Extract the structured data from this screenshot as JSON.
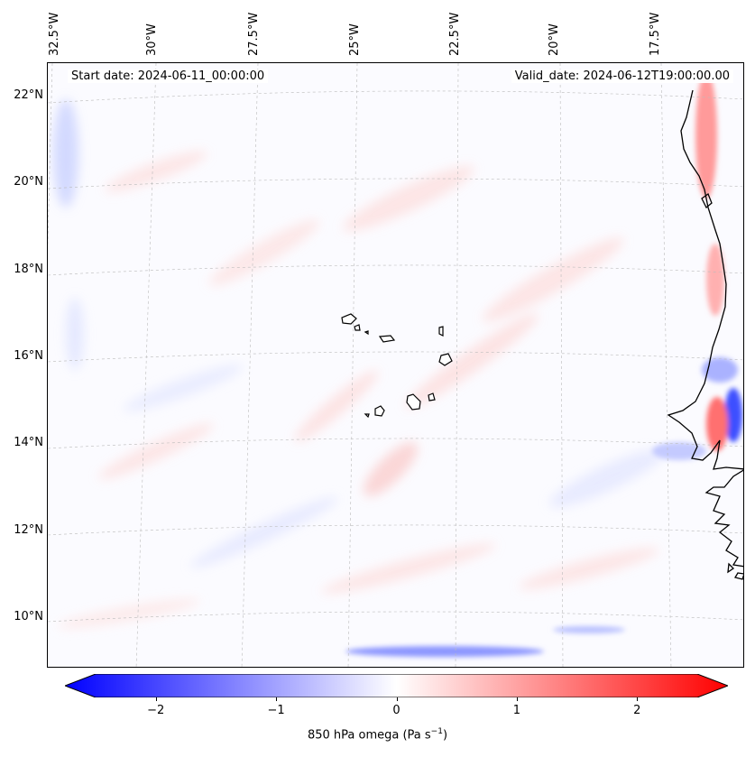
{
  "map": {
    "start_date": "Start date: 2024-06-11_00:00:00",
    "valid_date": "Valid_date: 2024-06-12T19:00:00.00",
    "lon_labels": [
      "32.5°W",
      "30°W",
      "27.5°W",
      "25°W",
      "22.5°W",
      "20°W",
      "17.5°W"
    ],
    "lat_labels": [
      "22°N",
      "20°N",
      "18°N",
      "16°N",
      "14°N",
      "12°N",
      "10°N"
    ],
    "variable": "850 hPa omega",
    "units": "(Pa s",
    "units_exp": "−1",
    "units_close": ")",
    "colormap": "bwr",
    "colors": {
      "min": "#0000ff",
      "mid": "#ffffff",
      "max": "#ff0000",
      "coast": "#000000"
    },
    "range": [
      -2.5,
      2.5
    ],
    "colorbar_ticks": [
      "−2",
      "−1",
      "0",
      "1",
      "2"
    ]
  }
}
